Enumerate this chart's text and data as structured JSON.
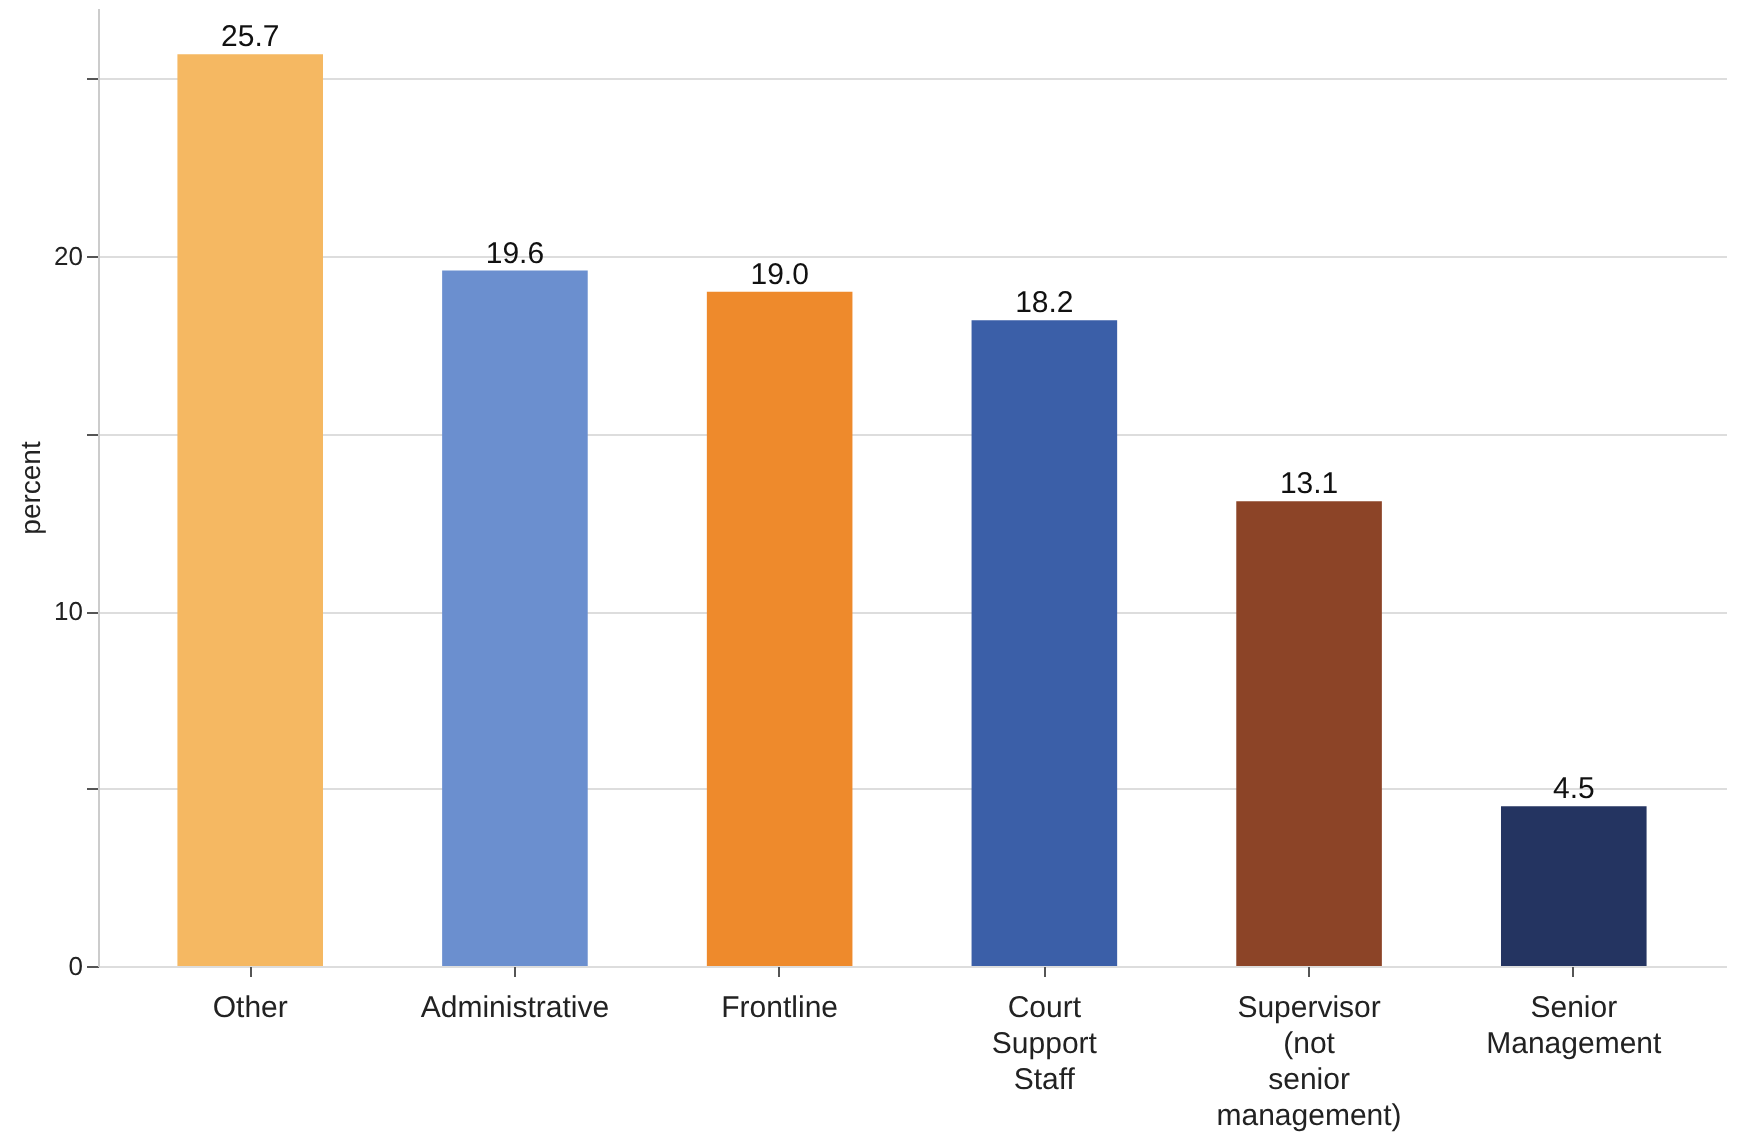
{
  "chart_data": {
    "type": "bar",
    "ylabel": "percent",
    "categories": [
      "Other",
      "Administrative",
      "Frontline",
      "Court Support Staff",
      "Supervisor (not senior management)",
      "Senior Management"
    ],
    "values": [
      25.7,
      19.6,
      19.0,
      18.2,
      13.1,
      4.5
    ],
    "colors": [
      "#f5b862",
      "#6b8fcf",
      "#ee8a2c",
      "#3b5fa8",
      "#8c4427",
      "#243461"
    ],
    "ylim": [
      0,
      27
    ],
    "yticks": [
      0,
      {
        "value": 5,
        "label": null
      },
      10,
      {
        "value": 15,
        "label": null
      },
      20,
      {
        "value": 25,
        "label": null
      }
    ],
    "grid": "y",
    "value_labels": [
      "25.7",
      "19.6",
      "19.0",
      "18.2",
      "13.1",
      "4.5"
    ]
  }
}
